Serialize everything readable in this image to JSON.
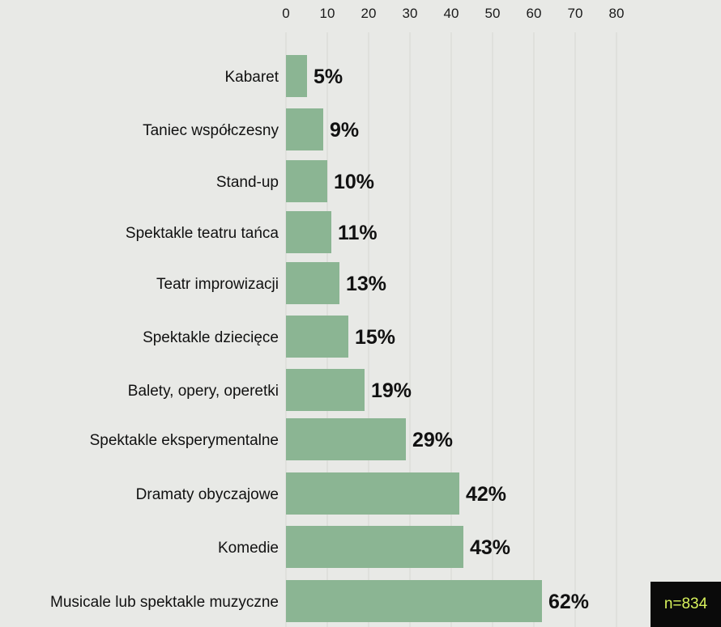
{
  "chart_data": {
    "type": "bar",
    "orientation": "horizontal",
    "categories": [
      "Kabaret",
      "Taniec współczesny",
      "Stand-up",
      "Spektakle teatru tańca",
      "Teatr improwizacji",
      "Spektakle dziecięce",
      "Balety, opery, operetki",
      "Spektakle eksperymentalne",
      "Dramaty obyczajowe",
      "Komedie",
      "Musicale lub spektakle muzyczne"
    ],
    "values": [
      5,
      9,
      10,
      11,
      13,
      15,
      19,
      29,
      42,
      43,
      62
    ],
    "value_labels": [
      "5%",
      "9%",
      "10%",
      "11%",
      "13%",
      "15%",
      "19%",
      "29%",
      "42%",
      "43%",
      "62%"
    ],
    "x_ticks": [
      "0",
      "10",
      "20",
      "30",
      "40",
      "50",
      "60",
      "70",
      "80"
    ],
    "xlim": [
      0,
      80
    ],
    "grid": true,
    "title": "",
    "xlabel": "",
    "ylabel": ""
  },
  "sample_size": "n=834",
  "colors": {
    "background": "#e8e9e6",
    "bar": "#8bb593",
    "grid": "#d6d6d3",
    "text": "#111111",
    "badge_bg": "#0a0a0a",
    "badge_text": "#d8f25c"
  }
}
